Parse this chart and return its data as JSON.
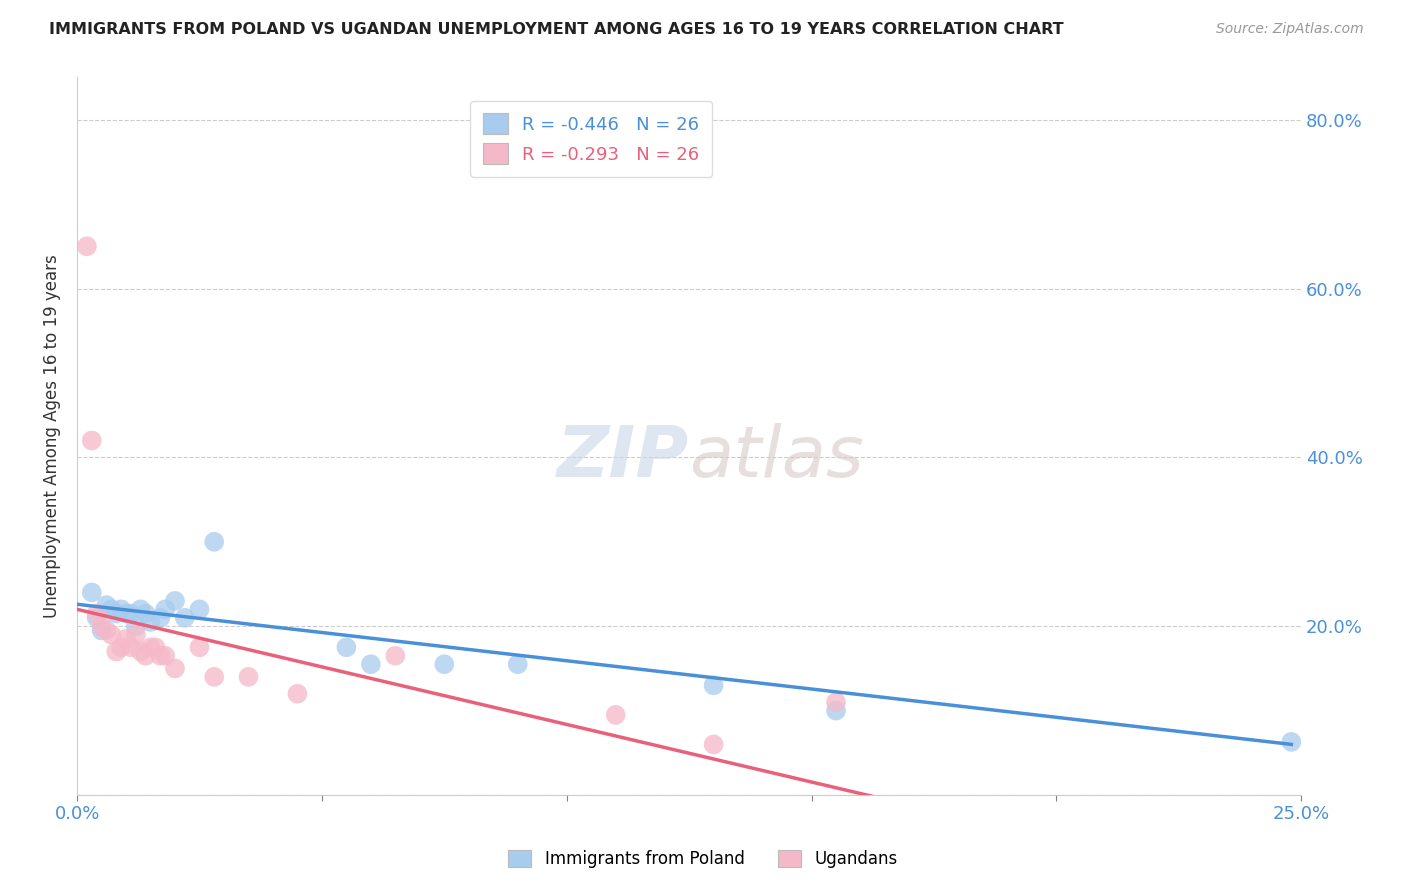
{
  "title": "IMMIGRANTS FROM POLAND VS UGANDAN UNEMPLOYMENT AMONG AGES 16 TO 19 YEARS CORRELATION CHART",
  "source_text": "Source: ZipAtlas.com",
  "ylabel": "Unemployment Among Ages 16 to 19 years",
  "xlim": [
    0.0,
    0.25
  ],
  "ylim": [
    0.0,
    0.85
  ],
  "xticks": [
    0.0,
    0.05,
    0.1,
    0.15,
    0.2,
    0.25
  ],
  "yticks": [
    0.0,
    0.2,
    0.4,
    0.6,
    0.8
  ],
  "blue_R": -0.446,
  "blue_N": 26,
  "pink_R": -0.293,
  "pink_N": 26,
  "blue_color": "#A8CCEE",
  "pink_color": "#F5B8C8",
  "blue_line_color": "#4A90D9",
  "pink_line_color": "#E8607A",
  "watermark_zip": "ZIP",
  "watermark_atlas": "atlas",
  "grid_color": "#CCCCCC",
  "blue_points_x": [
    0.003,
    0.004,
    0.005,
    0.006,
    0.007,
    0.008,
    0.009,
    0.01,
    0.011,
    0.012,
    0.013,
    0.014,
    0.015,
    0.017,
    0.018,
    0.02,
    0.022,
    0.025,
    0.028,
    0.055,
    0.06,
    0.075,
    0.09,
    0.13,
    0.155,
    0.248
  ],
  "blue_points_y": [
    0.24,
    0.21,
    0.195,
    0.225,
    0.22,
    0.215,
    0.22,
    0.215,
    0.215,
    0.2,
    0.22,
    0.215,
    0.205,
    0.21,
    0.22,
    0.23,
    0.21,
    0.22,
    0.3,
    0.175,
    0.155,
    0.155,
    0.155,
    0.13,
    0.1,
    0.063
  ],
  "pink_points_x": [
    0.002,
    0.003,
    0.004,
    0.005,
    0.006,
    0.007,
    0.008,
    0.009,
    0.01,
    0.011,
    0.012,
    0.013,
    0.014,
    0.015,
    0.016,
    0.017,
    0.018,
    0.02,
    0.025,
    0.028,
    0.035,
    0.045,
    0.065,
    0.11,
    0.13,
    0.155
  ],
  "pink_points_y": [
    0.65,
    0.42,
    0.215,
    0.2,
    0.195,
    0.19,
    0.17,
    0.175,
    0.185,
    0.175,
    0.19,
    0.17,
    0.165,
    0.175,
    0.175,
    0.165,
    0.165,
    0.15,
    0.175,
    0.14,
    0.14,
    0.12,
    0.165,
    0.095,
    0.06,
    0.11
  ],
  "blue_trendline_x0": 0.0,
  "blue_trendline_y0": 0.226,
  "blue_trendline_x1": 0.248,
  "blue_trendline_y1": 0.06,
  "pink_trendline_x0": 0.0,
  "pink_trendline_y0": 0.22,
  "pink_trendline_x1": 0.165,
  "pink_trendline_y1": -0.005
}
